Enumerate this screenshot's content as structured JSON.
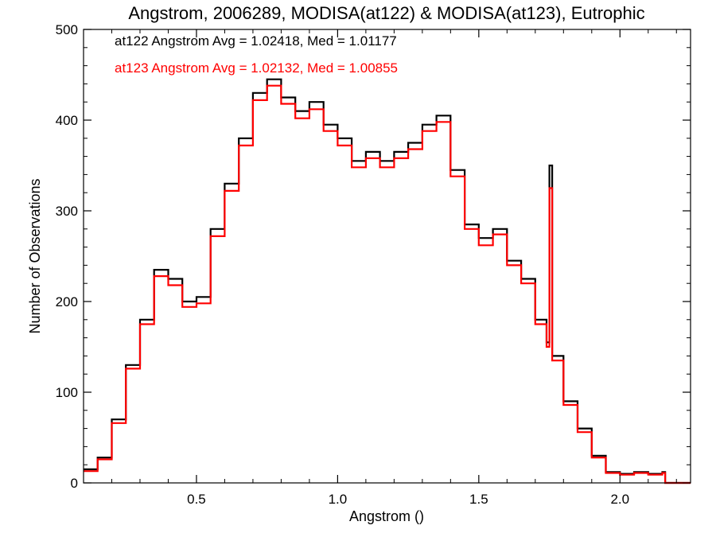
{
  "chart_data": {
    "type": "line",
    "subtype": "step-histogram",
    "title": "Angstrom, 2006289, MODISA(at122) & MODISA(at123), Eutrophic",
    "xlabel": "Angstrom ()",
    "ylabel": "Number of Observations",
    "xlim": [
      0.1,
      2.25
    ],
    "ylim": [
      0,
      500
    ],
    "xticks": [
      0.5,
      1.0,
      1.5,
      2.0
    ],
    "xtick_labels": [
      "0.5",
      "1.0",
      "1.5",
      "2.0"
    ],
    "yticks": [
      0,
      100,
      200,
      300,
      400,
      500
    ],
    "ytick_labels": [
      "0",
      "100",
      "200",
      "300",
      "400",
      "500"
    ],
    "grid": false,
    "legend": {
      "placement": "top-left",
      "entries": [
        "at122 Angstrom Avg = 1.02418, Med = 1.01177",
        "at123 Angstrom Avg = 1.02132, Med = 1.00855"
      ]
    },
    "series": [
      {
        "name": "at122",
        "color": "#000000",
        "x": [
          0.1,
          0.15,
          0.2,
          0.25,
          0.3,
          0.35,
          0.4,
          0.45,
          0.5,
          0.55,
          0.6,
          0.65,
          0.7,
          0.75,
          0.8,
          0.85,
          0.9,
          0.95,
          1.0,
          1.05,
          1.1,
          1.15,
          1.2,
          1.25,
          1.3,
          1.35,
          1.4,
          1.45,
          1.5,
          1.55,
          1.6,
          1.65,
          1.7,
          1.74,
          1.75,
          1.76,
          1.8,
          1.85,
          1.9,
          1.95,
          2.0,
          2.05,
          2.1,
          2.15,
          2.16,
          2.25
        ],
        "y": [
          15,
          28,
          70,
          130,
          180,
          235,
          225,
          200,
          205,
          280,
          330,
          380,
          430,
          445,
          425,
          410,
          420,
          395,
          380,
          355,
          365,
          355,
          365,
          375,
          395,
          405,
          345,
          285,
          270,
          280,
          245,
          225,
          180,
          155,
          350,
          140,
          90,
          60,
          30,
          12,
          10,
          12,
          10,
          12,
          0,
          0
        ]
      },
      {
        "name": "at123",
        "color": "#ff0000",
        "x": [
          0.1,
          0.15,
          0.2,
          0.25,
          0.3,
          0.35,
          0.4,
          0.45,
          0.5,
          0.55,
          0.6,
          0.65,
          0.7,
          0.75,
          0.8,
          0.85,
          0.9,
          0.95,
          1.0,
          1.05,
          1.1,
          1.15,
          1.2,
          1.25,
          1.3,
          1.35,
          1.4,
          1.45,
          1.5,
          1.55,
          1.6,
          1.65,
          1.7,
          1.74,
          1.75,
          1.76,
          1.8,
          1.85,
          1.9,
          1.95,
          2.0,
          2.05,
          2.1,
          2.15,
          2.16,
          2.25
        ],
        "y": [
          13,
          26,
          66,
          126,
          175,
          228,
          218,
          194,
          198,
          272,
          322,
          372,
          422,
          438,
          418,
          402,
          412,
          388,
          372,
          348,
          358,
          348,
          358,
          368,
          388,
          398,
          338,
          280,
          262,
          274,
          240,
          220,
          175,
          150,
          325,
          135,
          86,
          56,
          28,
          11,
          9,
          11,
          9,
          11,
          0,
          0
        ]
      }
    ]
  }
}
